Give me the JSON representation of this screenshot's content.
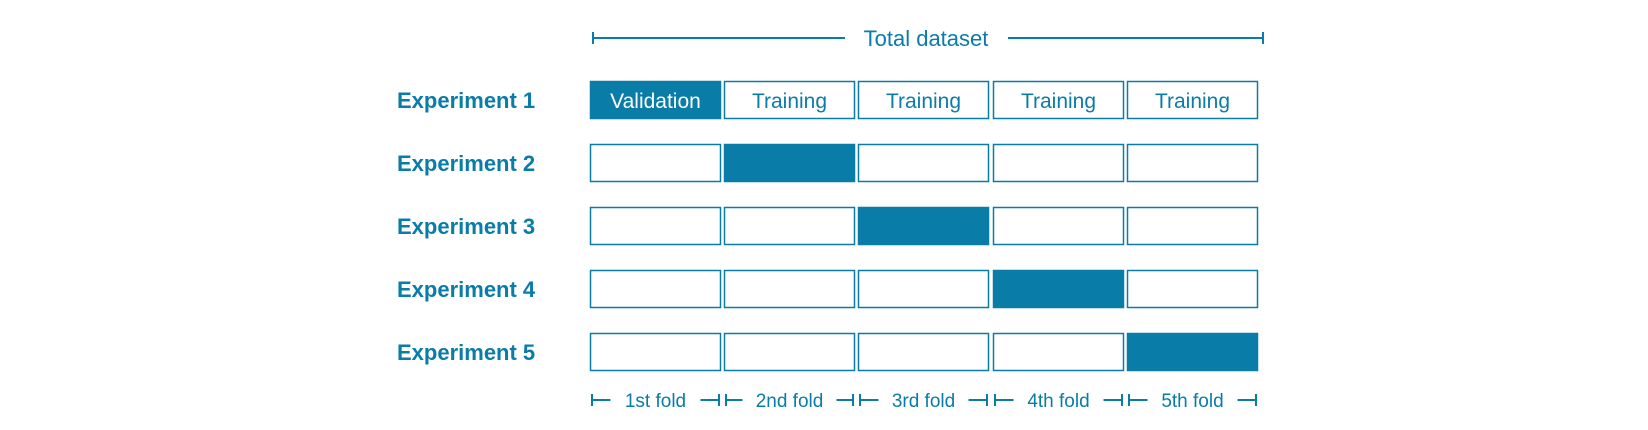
{
  "colors": {
    "accent": "#0a7ca8",
    "background": "#ffffff",
    "filled_text": "#ffffff"
  },
  "total_label": "Total dataset",
  "experiments": [
    {
      "label": "Experiment 1",
      "validation_fold": 0
    },
    {
      "label": "Experiment 2",
      "validation_fold": 1
    },
    {
      "label": "Experiment 3",
      "validation_fold": 2
    },
    {
      "label": "Experiment 4",
      "validation_fold": 3
    },
    {
      "label": "Experiment 5",
      "validation_fold": 4
    }
  ],
  "first_row_cells": [
    "Validation",
    "Training",
    "Training",
    "Training",
    "Training"
  ],
  "folds": [
    "1st fold",
    "2nd fold",
    "3rd fold",
    "4th fold",
    "5th fold"
  ]
}
